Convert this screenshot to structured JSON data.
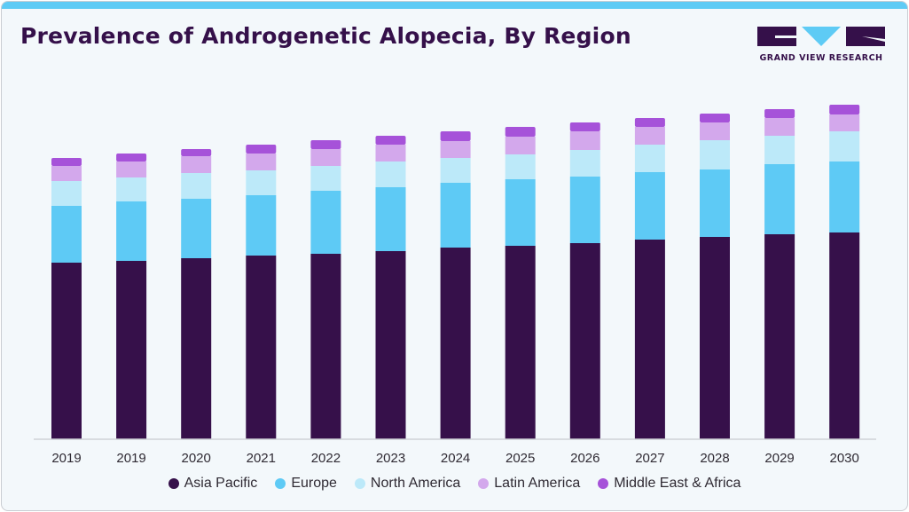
{
  "header": {
    "title": "Prevalence of Androgenetic Alopecia, By Region",
    "logo_text": "GRAND VIEW RESEARCH"
  },
  "colors": {
    "accent_bar": "#5ecbf5",
    "title": "#35104a",
    "background": "#f3f8fb"
  },
  "chart_data": {
    "type": "bar",
    "stacked": true,
    "title": "Prevalence of Androgenetic Alopecia, By Region",
    "xlabel": "",
    "ylabel": "",
    "y_axis_shown": false,
    "grid": false,
    "legend_position": "bottom",
    "categories": [
      "2019",
      "2019",
      "2020",
      "2021",
      "2022",
      "2023",
      "2024",
      "2025",
      "2026",
      "2027",
      "2028",
      "2029",
      "2030"
    ],
    "series": [
      {
        "name": "Asia Pacific",
        "color": "#36104a",
        "values": [
          199,
          201,
          204,
          207,
          209,
          212,
          216,
          218,
          221,
          225,
          228,
          231,
          233
        ]
      },
      {
        "name": "Europe",
        "color": "#5ecaf5",
        "values": [
          64,
          67,
          67,
          68,
          71,
          72,
          73,
          75,
          75,
          76,
          76,
          79,
          80
        ]
      },
      {
        "name": "North America",
        "color": "#bce9f9",
        "values": [
          28,
          27,
          29,
          28,
          28,
          29,
          28,
          28,
          30,
          31,
          33,
          32,
          34
        ]
      },
      {
        "name": "Latin America",
        "color": "#d3a8ec",
        "values": [
          17,
          18,
          19,
          19,
          19,
          19,
          19,
          20,
          21,
          20,
          20,
          20,
          19
        ]
      },
      {
        "name": "Middle East & Africa",
        "color": "#a652d9",
        "values": [
          9,
          9,
          8,
          10,
          10,
          10,
          11,
          11,
          10,
          10,
          10,
          10,
          11
        ]
      }
    ],
    "units": "relative (no axis values shown)"
  }
}
